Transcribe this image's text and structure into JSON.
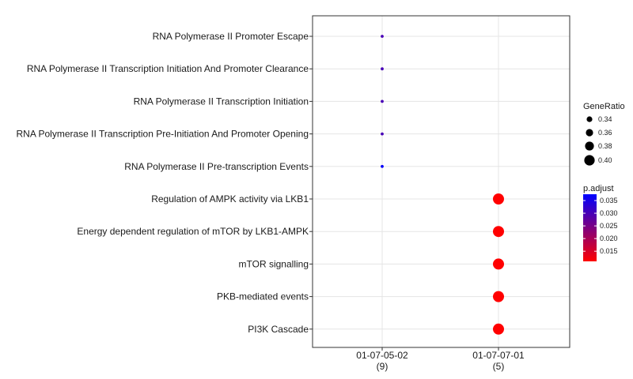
{
  "chart_data": {
    "type": "scatter",
    "title": "",
    "xlabel": "",
    "ylabel": "",
    "categories_x": [
      {
        "label": "01-07-05-02",
        "count": "(9)"
      },
      {
        "label": "01-07-07-01",
        "count": "(5)"
      }
    ],
    "categories_y": [
      "RNA Polymerase II Promoter Escape",
      "RNA Polymerase II Transcription Initiation And Promoter Clearance",
      "RNA Polymerase II Transcription Initiation",
      "RNA Polymerase II Transcription Pre-Initiation And Promoter Opening",
      "RNA Polymerase II Pre-transcription Events",
      "Regulation of AMPK activity via LKB1",
      "Energy dependent regulation of mTOR by LKB1-AMPK",
      "mTOR signalling",
      "PKB-mediated events",
      "PI3K Cascade"
    ],
    "points": [
      {
        "x": "01-07-05-02",
        "y": "RNA Polymerase II Promoter Escape",
        "gene_ratio": 0.333,
        "p_adjust": 0.03
      },
      {
        "x": "01-07-05-02",
        "y": "RNA Polymerase II Transcription Initiation And Promoter Clearance",
        "gene_ratio": 0.333,
        "p_adjust": 0.03
      },
      {
        "x": "01-07-05-02",
        "y": "RNA Polymerase II Transcription Initiation",
        "gene_ratio": 0.333,
        "p_adjust": 0.03
      },
      {
        "x": "01-07-05-02",
        "y": "RNA Polymerase II Transcription Pre-Initiation And Promoter Opening",
        "gene_ratio": 0.333,
        "p_adjust": 0.03
      },
      {
        "x": "01-07-05-02",
        "y": "RNA Polymerase II Pre-transcription Events",
        "gene_ratio": 0.333,
        "p_adjust": 0.037
      },
      {
        "x": "01-07-07-01",
        "y": "Regulation of AMPK activity via LKB1",
        "gene_ratio": 0.4,
        "p_adjust": 0.011
      },
      {
        "x": "01-07-07-01",
        "y": "Energy dependent regulation of mTOR by LKB1-AMPK",
        "gene_ratio": 0.4,
        "p_adjust": 0.011
      },
      {
        "x": "01-07-07-01",
        "y": "mTOR signalling",
        "gene_ratio": 0.4,
        "p_adjust": 0.011
      },
      {
        "x": "01-07-07-01",
        "y": "PKB-mediated events",
        "gene_ratio": 0.4,
        "p_adjust": 0.011
      },
      {
        "x": "01-07-07-01",
        "y": "PI3K Cascade",
        "gene_ratio": 0.4,
        "p_adjust": 0.011
      }
    ],
    "size_legend": {
      "title": "GeneRatio",
      "values": [
        0.34,
        0.36,
        0.38,
        0.4
      ],
      "labels": [
        "0.34",
        "0.36",
        "0.38",
        "0.40"
      ]
    },
    "color_legend": {
      "title": "p.adjust",
      "range": [
        0.011,
        0.0375
      ],
      "ticks": [
        0.035,
        0.03,
        0.025,
        0.02,
        0.015
      ],
      "tick_labels": [
        "0.035",
        "0.030",
        "0.025",
        "0.020",
        "0.015"
      ],
      "low_color": "#ff0000",
      "high_color": "#0000ff"
    },
    "grid": true,
    "legend_position": "right"
  }
}
